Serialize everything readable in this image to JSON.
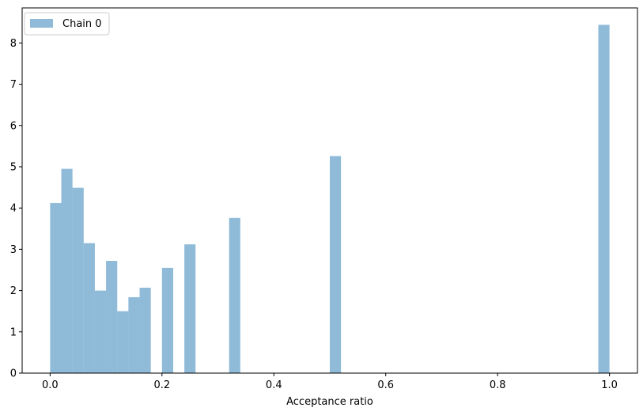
{
  "chart_data": {
    "type": "bar",
    "title": "",
    "xlabel": "Acceptance ratio",
    "ylabel": "",
    "xlim": [
      -0.05,
      1.05
    ],
    "ylim": [
      0,
      8.85
    ],
    "grid": false,
    "legend_position": "top-left",
    "bin_width": 0.02,
    "series": [
      {
        "name": "Chain 0",
        "color": "#1f77b4",
        "alpha": 0.5,
        "bins": [
          {
            "x0": 0.0,
            "x1": 0.02,
            "value": 4.12
          },
          {
            "x0": 0.02,
            "x1": 0.04,
            "value": 4.95
          },
          {
            "x0": 0.04,
            "x1": 0.06,
            "value": 4.49
          },
          {
            "x0": 0.06,
            "x1": 0.08,
            "value": 3.15
          },
          {
            "x0": 0.08,
            "x1": 0.1,
            "value": 2.0
          },
          {
            "x0": 0.1,
            "x1": 0.12,
            "value": 2.72
          },
          {
            "x0": 0.12,
            "x1": 0.14,
            "value": 1.5
          },
          {
            "x0": 0.14,
            "x1": 0.16,
            "value": 1.84
          },
          {
            "x0": 0.16,
            "x1": 0.18,
            "value": 2.07
          },
          {
            "x0": 0.2,
            "x1": 0.22,
            "value": 2.55
          },
          {
            "x0": 0.24,
            "x1": 0.26,
            "value": 3.12
          },
          {
            "x0": 0.32,
            "x1": 0.34,
            "value": 3.76
          },
          {
            "x0": 0.5,
            "x1": 0.52,
            "value": 5.26
          },
          {
            "x0": 0.98,
            "x1": 1.0,
            "value": 8.44
          }
        ]
      }
    ],
    "x_ticks": [
      {
        "value": 0.0,
        "label": "0.0"
      },
      {
        "value": 0.2,
        "label": "0.2"
      },
      {
        "value": 0.4,
        "label": "0.4"
      },
      {
        "value": 0.6,
        "label": "0.6"
      },
      {
        "value": 0.8,
        "label": "0.8"
      },
      {
        "value": 1.0,
        "label": "1.0"
      }
    ],
    "y_ticks": [
      {
        "value": 0,
        "label": "0"
      },
      {
        "value": 1,
        "label": "1"
      },
      {
        "value": 2,
        "label": "2"
      },
      {
        "value": 3,
        "label": "3"
      },
      {
        "value": 4,
        "label": "4"
      },
      {
        "value": 5,
        "label": "5"
      },
      {
        "value": 6,
        "label": "6"
      },
      {
        "value": 7,
        "label": "7"
      },
      {
        "value": 8,
        "label": "8"
      }
    ]
  }
}
